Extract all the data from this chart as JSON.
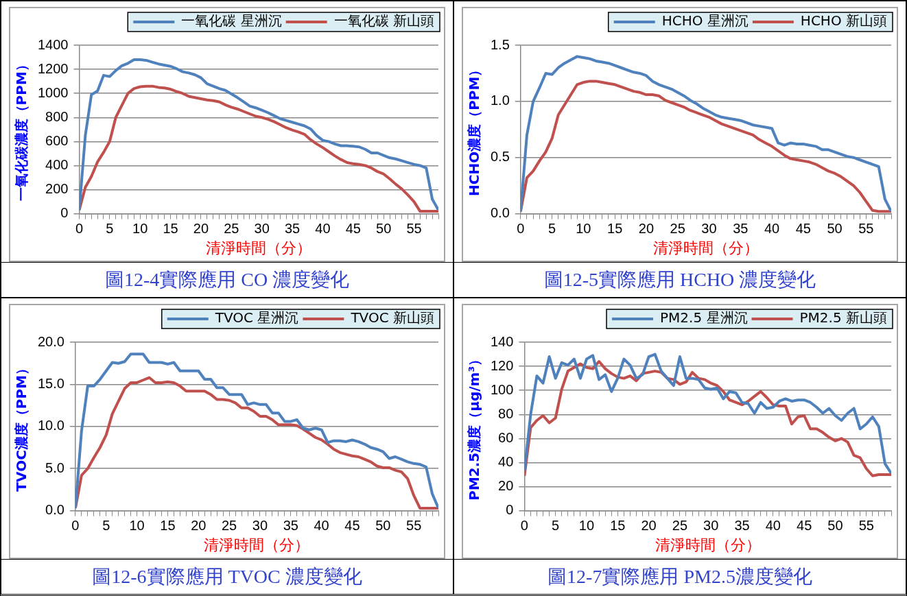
{
  "chart_data": [
    {
      "type": "line",
      "xlabel": "清淨時間（分）",
      "ylabel": "一氧化碳濃度（PPM）",
      "annotations": [
        "圖12-4實際應用  CO 濃度變化"
      ],
      "legend": "top right",
      "grid": "y",
      "marker": "none",
      "line_style": "solid",
      "x": [
        0,
        1,
        2,
        3,
        4,
        5,
        6,
        7,
        8,
        9,
        10,
        11,
        12,
        13,
        14,
        15,
        16,
        17,
        18,
        19,
        20,
        21,
        22,
        23,
        24,
        25,
        26,
        27,
        28,
        29,
        30,
        31,
        32,
        33,
        34,
        35,
        36,
        37,
        38,
        39,
        40,
        41,
        42,
        43,
        44,
        45,
        46,
        47,
        48,
        49,
        50,
        51,
        52,
        53,
        54,
        55,
        56,
        57,
        58,
        59
      ],
      "xlim": [
        0,
        59
      ],
      "ylim": [
        0,
        1400
      ],
      "yticks": [
        0,
        200,
        400,
        600,
        800,
        1000,
        1200,
        1400
      ],
      "xticks": [
        0,
        {
          "value": 1,
          "label": null
        },
        {
          "value": 2,
          "label": null
        },
        {
          "value": 3,
          "label": null
        },
        {
          "value": 4,
          "label": null
        },
        5,
        {
          "value": 6,
          "label": null
        },
        {
          "value": 7,
          "label": null
        },
        {
          "value": 8,
          "label": null
        },
        {
          "value": 9,
          "label": null
        },
        10,
        {
          "value": 11,
          "label": null
        },
        {
          "value": 12,
          "label": null
        },
        {
          "value": 13,
          "label": null
        },
        {
          "value": 14,
          "label": null
        },
        15,
        {
          "value": 16,
          "label": null
        },
        {
          "value": 17,
          "label": null
        },
        {
          "value": 18,
          "label": null
        },
        {
          "value": 19,
          "label": null
        },
        20,
        {
          "value": 21,
          "label": null
        },
        {
          "value": 22,
          "label": null
        },
        {
          "value": 23,
          "label": null
        },
        {
          "value": 24,
          "label": null
        },
        25,
        {
          "value": 26,
          "label": null
        },
        {
          "value": 27,
          "label": null
        },
        {
          "value": 28,
          "label": null
        },
        {
          "value": 29,
          "label": null
        },
        30,
        {
          "value": 31,
          "label": null
        },
        {
          "value": 32,
          "label": null
        },
        {
          "value": 33,
          "label": null
        },
        {
          "value": 34,
          "label": null
        },
        35,
        {
          "value": 36,
          "label": null
        },
        {
          "value": 37,
          "label": null
        },
        {
          "value": 38,
          "label": null
        },
        {
          "value": 39,
          "label": null
        },
        40,
        {
          "value": 41,
          "label": null
        },
        {
          "value": 42,
          "label": null
        },
        {
          "value": 43,
          "label": null
        },
        {
          "value": 44,
          "label": null
        },
        45,
        {
          "value": 46,
          "label": null
        },
        {
          "value": 47,
          "label": null
        },
        {
          "value": 48,
          "label": null
        },
        {
          "value": 49,
          "label": null
        },
        50,
        {
          "value": 51,
          "label": null
        },
        {
          "value": 52,
          "label": null
        },
        {
          "value": 53,
          "label": null
        },
        {
          "value": 54,
          "label": null
        },
        55,
        {
          "value": 56,
          "label": null
        },
        {
          "value": 57,
          "label": null
        },
        {
          "value": 58,
          "label": null
        },
        {
          "value": 59,
          "label": null
        }
      ],
      "series": [
        {
          "name": "一氧化碳 星洲沉",
          "color": "#4f81bd",
          "values": [
            30,
            650,
            990,
            1020,
            1150,
            1140,
            1190,
            1230,
            1250,
            1280,
            1280,
            1275,
            1260,
            1245,
            1235,
            1225,
            1205,
            1180,
            1170,
            1155,
            1130,
            1080,
            1060,
            1040,
            1025,
            995,
            965,
            930,
            895,
            880,
            860,
            840,
            815,
            790,
            775,
            760,
            745,
            730,
            705,
            650,
            610,
            600,
            580,
            565,
            565,
            560,
            555,
            535,
            505,
            505,
            485,
            465,
            455,
            440,
            425,
            410,
            400,
            380,
            120,
            30
          ]
        },
        {
          "name": "一氧化碳 新山頭",
          "color": "#c0504d",
          "values": [
            30,
            220,
            310,
            430,
            510,
            600,
            800,
            900,
            1000,
            1040,
            1055,
            1060,
            1060,
            1050,
            1045,
            1035,
            1015,
            1000,
            975,
            965,
            955,
            945,
            940,
            930,
            905,
            885,
            870,
            850,
            830,
            810,
            800,
            785,
            765,
            740,
            715,
            695,
            680,
            660,
            615,
            580,
            550,
            515,
            480,
            450,
            425,
            415,
            410,
            400,
            380,
            350,
            330,
            290,
            245,
            205,
            155,
            100,
            20,
            20,
            20,
            20
          ]
        }
      ]
    },
    {
      "type": "line",
      "xlabel": "清淨時間（分）",
      "ylabel": "HCHO濃度（PPM）",
      "annotations": [
        "圖12-5實際應用 HCHO 濃度變化"
      ],
      "legend": "top right",
      "grid": "y",
      "marker": "none",
      "line_style": "solid",
      "x": [
        0,
        1,
        2,
        3,
        4,
        5,
        6,
        7,
        8,
        9,
        10,
        11,
        12,
        13,
        14,
        15,
        16,
        17,
        18,
        19,
        20,
        21,
        22,
        23,
        24,
        25,
        26,
        27,
        28,
        29,
        30,
        31,
        32,
        33,
        34,
        35,
        36,
        37,
        38,
        39,
        40,
        41,
        42,
        43,
        44,
        45,
        46,
        47,
        48,
        49,
        50,
        51,
        52,
        53,
        54,
        55,
        56,
        57,
        58,
        59
      ],
      "xlim": [
        0,
        59
      ],
      "ylim": [
        0,
        1.5
      ],
      "yticks": [
        {
          "value": 0,
          "label": "0.0"
        },
        {
          "value": 0.5,
          "label": "0.5"
        },
        {
          "value": 1,
          "label": "1.0"
        },
        {
          "value": 1.5,
          "label": "1.5"
        }
      ],
      "xticks": [
        0,
        {
          "value": 1,
          "label": null
        },
        {
          "value": 2,
          "label": null
        },
        {
          "value": 3,
          "label": null
        },
        {
          "value": 4,
          "label": null
        },
        5,
        {
          "value": 6,
          "label": null
        },
        {
          "value": 7,
          "label": null
        },
        {
          "value": 8,
          "label": null
        },
        {
          "value": 9,
          "label": null
        },
        10,
        {
          "value": 11,
          "label": null
        },
        {
          "value": 12,
          "label": null
        },
        {
          "value": 13,
          "label": null
        },
        {
          "value": 14,
          "label": null
        },
        15,
        {
          "value": 16,
          "label": null
        },
        {
          "value": 17,
          "label": null
        },
        {
          "value": 18,
          "label": null
        },
        {
          "value": 19,
          "label": null
        },
        20,
        {
          "value": 21,
          "label": null
        },
        {
          "value": 22,
          "label": null
        },
        {
          "value": 23,
          "label": null
        },
        {
          "value": 24,
          "label": null
        },
        25,
        {
          "value": 26,
          "label": null
        },
        {
          "value": 27,
          "label": null
        },
        {
          "value": 28,
          "label": null
        },
        {
          "value": 29,
          "label": null
        },
        30,
        {
          "value": 31,
          "label": null
        },
        {
          "value": 32,
          "label": null
        },
        {
          "value": 33,
          "label": null
        },
        {
          "value": 34,
          "label": null
        },
        35,
        {
          "value": 36,
          "label": null
        },
        {
          "value": 37,
          "label": null
        },
        {
          "value": 38,
          "label": null
        },
        {
          "value": 39,
          "label": null
        },
        40,
        {
          "value": 41,
          "label": null
        },
        {
          "value": 42,
          "label": null
        },
        {
          "value": 43,
          "label": null
        },
        {
          "value": 44,
          "label": null
        },
        45,
        {
          "value": 46,
          "label": null
        },
        {
          "value": 47,
          "label": null
        },
        {
          "value": 48,
          "label": null
        },
        {
          "value": 49,
          "label": null
        },
        50,
        {
          "value": 51,
          "label": null
        },
        {
          "value": 52,
          "label": null
        },
        {
          "value": 53,
          "label": null
        },
        {
          "value": 54,
          "label": null
        },
        55,
        {
          "value": 56,
          "label": null
        },
        {
          "value": 57,
          "label": null
        },
        {
          "value": 58,
          "label": null
        },
        {
          "value": 59,
          "label": null
        }
      ],
      "series": [
        {
          "name": "HCHO 星洲沉",
          "color": "#4f81bd",
          "values": [
            0.02,
            0.7,
            1.0,
            1.12,
            1.25,
            1.24,
            1.3,
            1.34,
            1.37,
            1.4,
            1.39,
            1.38,
            1.36,
            1.35,
            1.34,
            1.32,
            1.3,
            1.28,
            1.26,
            1.25,
            1.23,
            1.18,
            1.15,
            1.13,
            1.11,
            1.08,
            1.05,
            1.01,
            0.98,
            0.94,
            0.91,
            0.88,
            0.86,
            0.85,
            0.84,
            0.83,
            0.81,
            0.79,
            0.78,
            0.77,
            0.76,
            0.63,
            0.61,
            0.63,
            0.62,
            0.62,
            0.61,
            0.6,
            0.57,
            0.57,
            0.55,
            0.53,
            0.51,
            0.5,
            0.48,
            0.46,
            0.44,
            0.42,
            0.13,
            0.02
          ]
        },
        {
          "name": "HCHO 新山頭",
          "color": "#c0504d",
          "values": [
            0.02,
            0.32,
            0.38,
            0.47,
            0.55,
            0.67,
            0.88,
            0.97,
            1.06,
            1.15,
            1.17,
            1.18,
            1.18,
            1.17,
            1.16,
            1.15,
            1.13,
            1.11,
            1.09,
            1.08,
            1.06,
            1.06,
            1.05,
            1.01,
            0.99,
            0.97,
            0.95,
            0.92,
            0.9,
            0.88,
            0.86,
            0.83,
            0.8,
            0.78,
            0.76,
            0.74,
            0.72,
            0.7,
            0.66,
            0.63,
            0.6,
            0.56,
            0.52,
            0.49,
            0.48,
            0.47,
            0.46,
            0.44,
            0.41,
            0.38,
            0.36,
            0.33,
            0.29,
            0.25,
            0.19,
            0.11,
            0.03,
            0.02,
            0.02,
            0.02
          ]
        }
      ]
    },
    {
      "type": "line",
      "xlabel": "清淨時間（分）",
      "ylabel": "TVOC濃度（PPM）",
      "annotations": [
        "圖12-6實際應用 TVOC 濃度變化"
      ],
      "legend": "top right",
      "grid": "y",
      "marker": "none",
      "line_style": "solid",
      "x": [
        0,
        1,
        2,
        3,
        4,
        5,
        6,
        7,
        8,
        9,
        10,
        11,
        12,
        13,
        14,
        15,
        16,
        17,
        18,
        19,
        20,
        21,
        22,
        23,
        24,
        25,
        26,
        27,
        28,
        29,
        30,
        31,
        32,
        33,
        34,
        35,
        36,
        37,
        38,
        39,
        40,
        41,
        42,
        43,
        44,
        45,
        46,
        47,
        48,
        49,
        50,
        51,
        52,
        53,
        54,
        55,
        56,
        57,
        58,
        59
      ],
      "xlim": [
        0,
        59
      ],
      "ylim": [
        0,
        20
      ],
      "yticks": [
        {
          "value": 0,
          "label": "0.0"
        },
        {
          "value": 5,
          "label": "5.0"
        },
        {
          "value": 10,
          "label": "10.0"
        },
        {
          "value": 15,
          "label": "15.0"
        },
        {
          "value": 20,
          "label": "20.0"
        }
      ],
      "xticks": [
        0,
        {
          "value": 1,
          "label": null
        },
        {
          "value": 2,
          "label": null
        },
        {
          "value": 3,
          "label": null
        },
        {
          "value": 4,
          "label": null
        },
        5,
        {
          "value": 6,
          "label": null
        },
        {
          "value": 7,
          "label": null
        },
        {
          "value": 8,
          "label": null
        },
        {
          "value": 9,
          "label": null
        },
        10,
        {
          "value": 11,
          "label": null
        },
        {
          "value": 12,
          "label": null
        },
        {
          "value": 13,
          "label": null
        },
        {
          "value": 14,
          "label": null
        },
        15,
        {
          "value": 16,
          "label": null
        },
        {
          "value": 17,
          "label": null
        },
        {
          "value": 18,
          "label": null
        },
        {
          "value": 19,
          "label": null
        },
        20,
        {
          "value": 21,
          "label": null
        },
        {
          "value": 22,
          "label": null
        },
        {
          "value": 23,
          "label": null
        },
        {
          "value": 24,
          "label": null
        },
        25,
        {
          "value": 26,
          "label": null
        },
        {
          "value": 27,
          "label": null
        },
        {
          "value": 28,
          "label": null
        },
        {
          "value": 29,
          "label": null
        },
        30,
        {
          "value": 31,
          "label": null
        },
        {
          "value": 32,
          "label": null
        },
        {
          "value": 33,
          "label": null
        },
        {
          "value": 34,
          "label": null
        },
        35,
        {
          "value": 36,
          "label": null
        },
        {
          "value": 37,
          "label": null
        },
        {
          "value": 38,
          "label": null
        },
        {
          "value": 39,
          "label": null
        },
        40,
        {
          "value": 41,
          "label": null
        },
        {
          "value": 42,
          "label": null
        },
        {
          "value": 43,
          "label": null
        },
        {
          "value": 44,
          "label": null
        },
        45,
        {
          "value": 46,
          "label": null
        },
        {
          "value": 47,
          "label": null
        },
        {
          "value": 48,
          "label": null
        },
        {
          "value": 49,
          "label": null
        },
        50,
        {
          "value": 51,
          "label": null
        },
        {
          "value": 52,
          "label": null
        },
        {
          "value": 53,
          "label": null
        },
        {
          "value": 54,
          "label": null
        },
        55,
        {
          "value": 56,
          "label": null
        },
        {
          "value": 57,
          "label": null
        },
        {
          "value": 58,
          "label": null
        },
        {
          "value": 59,
          "label": null
        }
      ],
      "series": [
        {
          "name": "TVOC 星洲沉",
          "color": "#4f81bd",
          "values": [
            0.3,
            9.5,
            14.8,
            14.8,
            15.6,
            16.6,
            17.6,
            17.5,
            17.7,
            18.6,
            18.6,
            18.6,
            17.6,
            17.6,
            17.6,
            17.4,
            17.6,
            16.6,
            16.6,
            16.6,
            16.6,
            15.6,
            15.6,
            14.6,
            14.6,
            13.8,
            13.8,
            13.8,
            12.6,
            12.8,
            12.6,
            12.6,
            11.6,
            11.6,
            10.6,
            10.6,
            10.8,
            9.8,
            9.6,
            9.8,
            9.6,
            8.1,
            8.3,
            8.3,
            8.2,
            8.4,
            8.2,
            7.9,
            7.5,
            7.3,
            7.0,
            6.2,
            6.4,
            6.1,
            5.8,
            5.6,
            5.5,
            5.2,
            2.0,
            0.3
          ]
        },
        {
          "name": "TVOC 新山頭",
          "color": "#c0504d",
          "values": [
            0.3,
            4.2,
            5.0,
            6.3,
            7.5,
            9.0,
            11.5,
            13.0,
            14.5,
            15.2,
            15.2,
            15.5,
            15.8,
            15.2,
            15.2,
            15.3,
            15.2,
            14.8,
            14.2,
            14.2,
            14.2,
            14.2,
            13.8,
            13.2,
            13.2,
            13.1,
            12.8,
            12.2,
            12.2,
            11.8,
            11.2,
            11.2,
            10.8,
            10.2,
            10.2,
            10.2,
            10.1,
            9.7,
            9.2,
            8.7,
            8.4,
            7.9,
            7.3,
            6.9,
            6.7,
            6.5,
            6.4,
            6.1,
            5.8,
            5.3,
            5.1,
            5.1,
            4.8,
            4.6,
            3.8,
            1.8,
            0.3,
            0.3,
            0.3,
            0.3
          ]
        }
      ]
    },
    {
      "type": "line",
      "xlabel": "清淨時間（分）",
      "ylabel": "PM2.5濃度（μg/m³）",
      "annotations": [
        "圖12-7實際應用 PM2.5濃度變化"
      ],
      "legend": "top right",
      "grid": "y",
      "marker": "none",
      "line_style": "solid",
      "x": [
        0,
        1,
        2,
        3,
        4,
        5,
        6,
        7,
        8,
        9,
        10,
        11,
        12,
        13,
        14,
        15,
        16,
        17,
        18,
        19,
        20,
        21,
        22,
        23,
        24,
        25,
        26,
        27,
        28,
        29,
        30,
        31,
        32,
        33,
        34,
        35,
        36,
        37,
        38,
        39,
        40,
        41,
        42,
        43,
        44,
        45,
        46,
        47,
        48,
        49,
        50,
        51,
        52,
        53,
        54,
        55,
        56,
        57,
        58,
        59
      ],
      "xlim": [
        0,
        59
      ],
      "ylim": [
        0,
        140
      ],
      "yticks": [
        0,
        20,
        40,
        60,
        80,
        100,
        120,
        140
      ],
      "xticks": [
        0,
        {
          "value": 1,
          "label": null
        },
        {
          "value": 2,
          "label": null
        },
        {
          "value": 3,
          "label": null
        },
        {
          "value": 4,
          "label": null
        },
        5,
        {
          "value": 6,
          "label": null
        },
        {
          "value": 7,
          "label": null
        },
        {
          "value": 8,
          "label": null
        },
        {
          "value": 9,
          "label": null
        },
        10,
        {
          "value": 11,
          "label": null
        },
        {
          "value": 12,
          "label": null
        },
        {
          "value": 13,
          "label": null
        },
        {
          "value": 14,
          "label": null
        },
        15,
        {
          "value": 16,
          "label": null
        },
        {
          "value": 17,
          "label": null
        },
        {
          "value": 18,
          "label": null
        },
        {
          "value": 19,
          "label": null
        },
        20,
        {
          "value": 21,
          "label": null
        },
        {
          "value": 22,
          "label": null
        },
        {
          "value": 23,
          "label": null
        },
        {
          "value": 24,
          "label": null
        },
        25,
        {
          "value": 26,
          "label": null
        },
        {
          "value": 27,
          "label": null
        },
        {
          "value": 28,
          "label": null
        },
        {
          "value": 29,
          "label": null
        },
        30,
        {
          "value": 31,
          "label": null
        },
        {
          "value": 32,
          "label": null
        },
        {
          "value": 33,
          "label": null
        },
        {
          "value": 34,
          "label": null
        },
        35,
        {
          "value": 36,
          "label": null
        },
        {
          "value": 37,
          "label": null
        },
        {
          "value": 38,
          "label": null
        },
        {
          "value": 39,
          "label": null
        },
        40,
        {
          "value": 41,
          "label": null
        },
        {
          "value": 42,
          "label": null
        },
        {
          "value": 43,
          "label": null
        },
        {
          "value": 44,
          "label": null
        },
        45,
        {
          "value": 46,
          "label": null
        },
        {
          "value": 47,
          "label": null
        },
        {
          "value": 48,
          "label": null
        },
        {
          "value": 49,
          "label": null
        },
        50,
        {
          "value": 51,
          "label": null
        },
        {
          "value": 52,
          "label": null
        },
        {
          "value": 53,
          "label": null
        },
        {
          "value": 54,
          "label": null
        },
        55,
        {
          "value": 56,
          "label": null
        },
        {
          "value": 57,
          "label": null
        },
        {
          "value": 58,
          "label": null
        },
        {
          "value": 59,
          "label": null
        }
      ],
      "series": [
        {
          "name": "PM2.5 星洲沉",
          "color": "#4f81bd",
          "values": [
            33,
            80,
            112,
            106,
            128,
            110,
            123,
            121,
            126,
            110,
            126,
            129,
            109,
            113,
            99,
            110,
            126,
            121,
            110,
            113,
            128,
            130,
            116,
            110,
            104,
            128,
            110,
            110,
            109,
            102,
            101,
            102,
            93,
            99,
            98,
            90,
            89,
            81,
            90,
            85,
            86,
            91,
            93,
            91,
            92,
            92,
            90,
            86,
            81,
            85,
            79,
            75,
            81,
            85,
            68,
            72,
            78,
            70,
            39,
            31
          ]
        },
        {
          "name": "PM2.5 新山頭",
          "color": "#c0504d",
          "values": [
            29,
            69,
            75,
            79,
            73,
            77,
            101,
            116,
            119,
            122,
            119,
            118,
            124,
            118,
            114,
            111,
            110,
            112,
            108,
            114,
            115,
            116,
            115,
            110,
            109,
            105,
            107,
            115,
            110,
            109,
            106,
            104,
            99,
            92,
            90,
            88,
            91,
            95,
            99,
            94,
            88,
            87,
            87,
            72,
            78,
            79,
            68,
            68,
            65,
            61,
            58,
            60,
            57,
            46,
            44,
            35,
            29,
            30,
            30,
            30
          ]
        }
      ]
    }
  ]
}
